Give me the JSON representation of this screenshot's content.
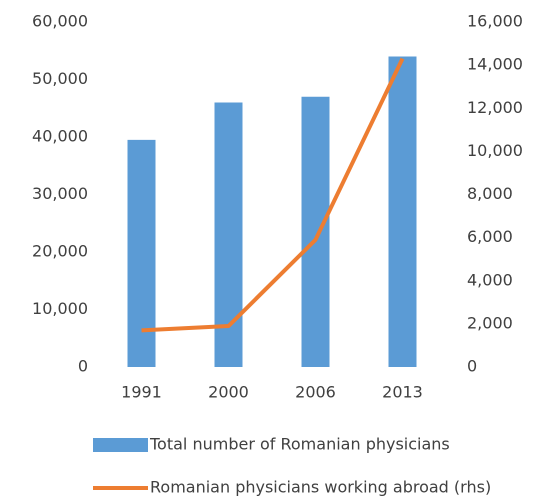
{
  "chart_data": {
    "type": "bar_line",
    "categories": [
      "1991",
      "2000",
      "2006",
      "2013"
    ],
    "series": [
      {
        "name": "Total number of Romanian physicians",
        "color": "#5b9bd5",
        "type": "bar",
        "values": [
          39500,
          46000,
          47000,
          54000
        ]
      },
      {
        "name": "Romanian physicians working abroad (rhs)",
        "color": "#ed7d31",
        "type": "line",
        "axis": "y2",
        "values": [
          1700,
          1900,
          5900,
          14300
        ]
      }
    ],
    "ylim": [
      0,
      60000
    ],
    "yticks": [
      0,
      {
        "value": 10000,
        "label": "10,000"
      },
      {
        "value": 20000,
        "label": "20,000"
      },
      {
        "value": 30000,
        "label": "30,000"
      },
      {
        "value": 40000,
        "label": "40,000"
      },
      {
        "value": 50000,
        "label": "50,000"
      },
      {
        "value": 60000,
        "label": "60,000"
      }
    ],
    "y2lim": [
      0,
      16000
    ],
    "y2ticks": [
      0,
      {
        "value": 2000,
        "label": "2,000"
      },
      {
        "value": 4000,
        "label": "4,000"
      },
      {
        "value": 6000,
        "label": "6,000"
      },
      {
        "value": 8000,
        "label": "8,000"
      },
      {
        "value": 10000,
        "label": "10,000"
      },
      {
        "value": 12000,
        "label": "12,000"
      },
      {
        "value": 14000,
        "label": "14,000"
      },
      {
        "value": 16000,
        "label": "16,000"
      }
    ],
    "grid": false,
    "legend": "bottom"
  }
}
